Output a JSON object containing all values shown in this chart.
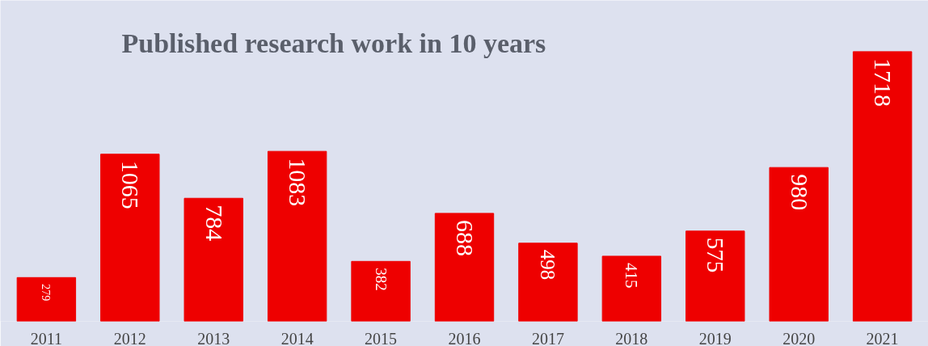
{
  "chart_data": {
    "type": "bar",
    "title": "Published research work in 10 years",
    "categories": [
      "2011",
      "2012",
      "2013",
      "2014",
      "2015",
      "2016",
      "2017",
      "2018",
      "2019",
      "2020",
      "2021"
    ],
    "values": [
      279,
      1065,
      784,
      1083,
      382,
      688,
      498,
      415,
      575,
      980,
      1718
    ],
    "color": "#ee0000",
    "data_labels": true
  }
}
